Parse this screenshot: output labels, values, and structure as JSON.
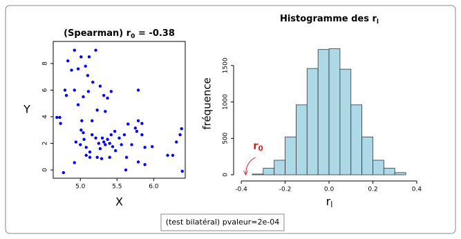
{
  "chart_data": [
    {
      "type": "scatter",
      "title": [
        "(Spearman) r",
        "0",
        " = -0.38"
      ],
      "xlabel": "X",
      "ylabel": "Y",
      "color": "#0000ff",
      "x": [
        4.92,
        5.21,
        4.68,
        4.73,
        4.72,
        4.79,
        4.81,
        4.83,
        4.88,
        4.92,
        4.97,
        5.01,
        5.07,
        5.12,
        5.1,
        5.17,
        5.04,
        4.97,
        5.11,
        5.27,
        5.32,
        5.37,
        5.42,
        5.34,
        5.23,
        5.16,
        5.02,
        5.01,
        5.04,
        4.94,
        5.0,
        5.05,
        5.08,
        5.13,
        5.16,
        5.21,
        5.25,
        5.27,
        5.3,
        5.32,
        5.34,
        5.37,
        5.4,
        5.42,
        5.44,
        5.47,
        5.48,
        5.53,
        5.56,
        5.6,
        5.63,
        5.65,
        5.7,
        5.75,
        5.79,
        5.79,
        5.77,
        5.84,
        5.84,
        5.88,
        5.79,
        5.88,
        5.98,
        6.19,
        6.26,
        6.31,
        6.38,
        6.36,
        6.39,
        4.77,
        5.62,
        5.23,
        5.29,
        5.13,
        5.08,
        5.4,
        4.92
      ],
      "values": [
        9.0,
        9.0,
        3.95,
        3.5,
        3.95,
        6.0,
        5.6,
        8.2,
        7.5,
        6.0,
        7.6,
        8.5,
        7.8,
        8.5,
        7.1,
        6.6,
        5.5,
        4.9,
        5.9,
        6.3,
        5.6,
        5.4,
        5.9,
        4.4,
        4.5,
        3.7,
        3.7,
        3.0,
        2.8,
        2.1,
        1.9,
        2.3,
        1.7,
        1.35,
        2.65,
        2.4,
        2.0,
        1.6,
        2.4,
        2.1,
        1.9,
        2.3,
        2.0,
        2.65,
        1.75,
        2.9,
        1.45,
        2.4,
        1.9,
        2.65,
        0.95,
        3.45,
        1.9,
        3.15,
        3.7,
        6.0,
        2.9,
        2.65,
        3.5,
        1.7,
        0.6,
        0.4,
        1.75,
        1.1,
        1.1,
        2.1,
        3.1,
        2.65,
        -0.1,
        -0.2,
        0.0,
        0.95,
        0.85,
        0.95,
        1.1,
        0.95,
        0.55
      ],
      "xlim": [
        4.63,
        6.43
      ],
      "ylim": [
        -0.62,
        9.66
      ],
      "xticks": [
        {
          "value": 5,
          "label": "5.0"
        },
        5.5,
        {
          "value": 6,
          "label": "6.0"
        }
      ],
      "yticks": [
        0,
        2,
        4,
        6,
        8
      ]
    },
    {
      "type": "histogram",
      "title": [
        "Histogramme des r",
        "l"
      ],
      "xlabel": [
        "r",
        "l"
      ],
      "ylabel": "fréquence",
      "color": "#add8e6",
      "bins": [
        -0.35,
        -0.3,
        -0.25,
        -0.2,
        -0.15,
        -0.1,
        -0.05,
        0,
        0.05,
        0.1,
        0.15,
        0.2,
        0.25,
        0.3,
        0.35
      ],
      "values": [
        10,
        90,
        200,
        520,
        960,
        1460,
        1720,
        1730,
        1450,
        960,
        520,
        200,
        90,
        30
      ],
      "xlim": [
        -0.435,
        0.438
      ],
      "ylim": [
        -85,
        1973
      ],
      "xticks": [
        -0.4,
        -0.2,
        {
          "value": 0,
          "label": "0.0"
        },
        0.2,
        0.4
      ],
      "yticks": [
        0,
        500,
        1000,
        1500
      ],
      "annotation": {
        "label": [
          "r",
          "0"
        ],
        "x": -0.38
      }
    }
  ],
  "footer": "(test bilatéral) pvaleur=2e-04"
}
